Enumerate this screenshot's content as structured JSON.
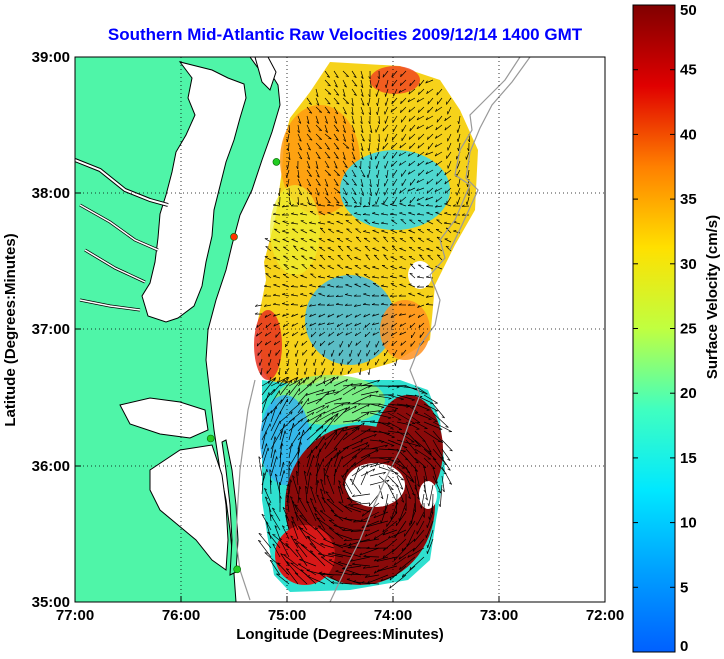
{
  "title": "Southern Mid-Atlantic Raw Velocities 2009/12/14 1400 GMT",
  "xlabel": "Longitude (Degrees:Minutes)",
  "ylabel": "Latitude (Degrees:Minutes)",
  "x_ticks": [
    "77:00",
    "76:00",
    "75:00",
    "74:00",
    "73:00",
    "72:00"
  ],
  "y_ticks": [
    "39:00",
    "38:00",
    "37:00",
    "36:00",
    "35:00"
  ],
  "colorbar": {
    "label": "Surface Velocity (cm/s)",
    "min": 0,
    "max": 50,
    "ticks": [
      "0",
      "5",
      "10",
      "15",
      "20",
      "25",
      "30",
      "35",
      "40",
      "45",
      "50"
    ],
    "colormap": "jet"
  },
  "colors": {
    "land": "#4ff5a8",
    "water": "#ffffff",
    "title": "#0000ff",
    "site_markers": "#22cc22",
    "site_marker_alt": "#ff3300",
    "isobath": "#999999"
  },
  "chart_data": {
    "type": "heatmap",
    "title": "Southern Mid-Atlantic Raw Velocities 2009/12/14 1400 GMT",
    "xlabel": "Longitude (Degrees:Minutes)",
    "ylabel": "Latitude (Degrees:Minutes)",
    "xlim": [
      -77,
      -72
    ],
    "ylim": [
      35,
      39
    ],
    "grid": true,
    "value_label": "Surface Velocity (cm/s)",
    "clim": [
      0,
      50
    ],
    "site_markers": [
      {
        "lon": -74.9,
        "lat": 39.03,
        "color": "green"
      },
      {
        "lon": -75.1,
        "lat": 38.23,
        "color": "green"
      },
      {
        "lon": -75.5,
        "lat": 37.68,
        "color": "red"
      },
      {
        "lon": -75.72,
        "lat": 36.2,
        "color": "green"
      },
      {
        "lon": -75.47,
        "lat": 35.24,
        "color": "green"
      }
    ],
    "velocity_regions": [
      {
        "lon": -74.75,
        "lat": 38.6,
        "speed": 33
      },
      {
        "lon": -74.2,
        "lat": 38.8,
        "speed": 30
      },
      {
        "lon": -73.9,
        "lat": 38.5,
        "speed": 14
      },
      {
        "lon": -74.1,
        "lat": 38.1,
        "speed": 10
      },
      {
        "lon": -73.5,
        "lat": 37.95,
        "speed": 22
      },
      {
        "lon": -74.6,
        "lat": 37.9,
        "speed": 12
      },
      {
        "lon": -74.3,
        "lat": 37.45,
        "speed": 28
      },
      {
        "lon": -74.6,
        "lat": 37.15,
        "speed": 12
      },
      {
        "lon": -75.05,
        "lat": 37.05,
        "speed": 33
      },
      {
        "lon": -74.0,
        "lat": 36.95,
        "speed": 30
      },
      {
        "lon": -74.4,
        "lat": 36.6,
        "speed": 20
      },
      {
        "lon": -74.9,
        "lat": 36.3,
        "speed": 12
      },
      {
        "lon": -74.0,
        "lat": 36.2,
        "speed": 48
      },
      {
        "lon": -74.4,
        "lat": 35.7,
        "speed": 50
      },
      {
        "lon": -74.8,
        "lat": 35.35,
        "speed": 45
      },
      {
        "lon": -75.0,
        "lat": 35.8,
        "speed": 18
      }
    ]
  }
}
